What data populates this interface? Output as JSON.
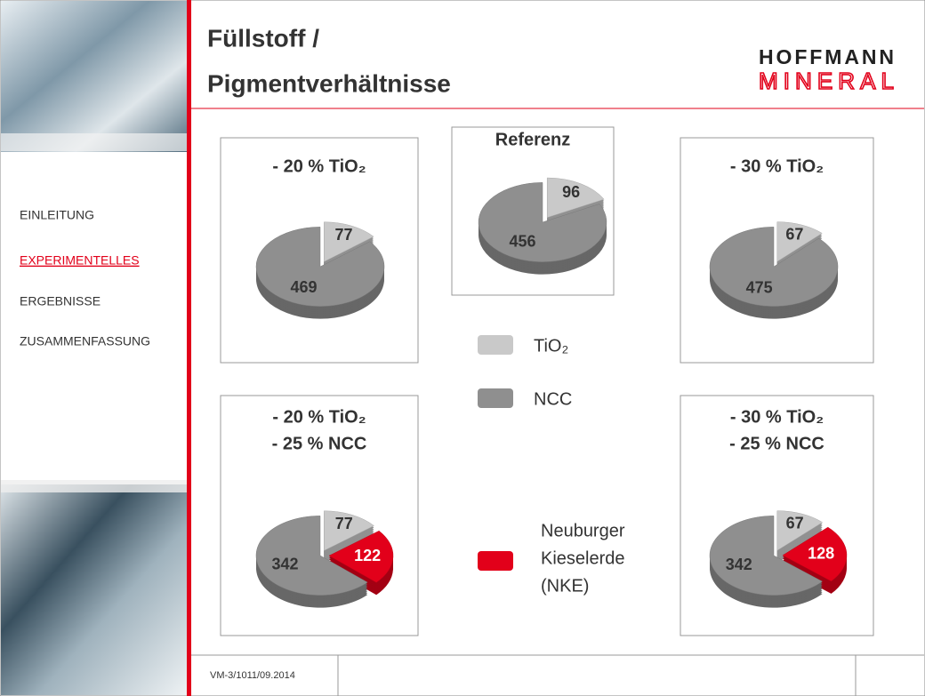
{
  "header": {
    "title": [
      "Füllstoff /",
      "Pigmentverhältnisse"
    ],
    "logo": [
      "HOFFMANN",
      "MINERAL"
    ]
  },
  "nav": [
    "EINLEITUNG",
    "EXPERIMENTELLES",
    "ERGEBNISSE",
    "ZUSAMMENFASSUNG"
  ],
  "footer": "VM-3/1011/09.2014",
  "legend": [
    {
      "label": [
        "TiO₂"
      ],
      "color": "#c9c9c9"
    },
    {
      "label": [
        "NCC"
      ],
      "color": "#8f8f8f"
    },
    {
      "label": [
        "Neuburger",
        "Kieselerde",
        "(NKE)"
      ],
      "color": "#e2001a"
    }
  ],
  "chart_data": [
    {
      "type": "pie",
      "title": [
        "- 20 % TiO₂"
      ],
      "values": [
        77,
        469
      ]
    },
    {
      "type": "pie",
      "title": [
        "Referenz"
      ],
      "values": [
        96,
        456
      ]
    },
    {
      "type": "pie",
      "title": [
        "- 30 % TiO₂"
      ],
      "values": [
        67,
        475
      ]
    },
    {
      "type": "pie",
      "title": [
        "- 20 % TiO₂",
        "- 25 % NCC"
      ],
      "values": [
        77,
        342,
        122
      ]
    },
    {
      "type": "pie",
      "title": [
        "- 30 % TiO₂",
        "- 25 % NCC"
      ],
      "values": [
        67,
        342,
        128
      ]
    }
  ]
}
